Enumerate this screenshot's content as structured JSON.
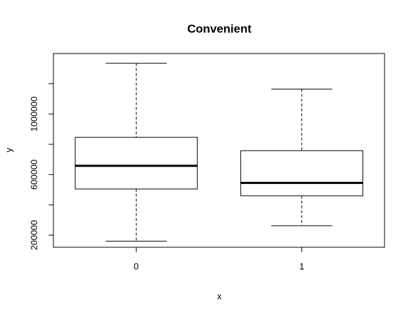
{
  "chart_data": {
    "type": "boxplot",
    "title": "Convenient",
    "xlabel": "x",
    "ylabel": "y",
    "categories": [
      "0",
      "1"
    ],
    "boxes": [
      {
        "category": "0",
        "min": 160000,
        "q1": 505000,
        "median": 658000,
        "q3": 846000,
        "max": 1335000
      },
      {
        "category": "1",
        "min": 262000,
        "q1": 460000,
        "median": 545000,
        "q3": 758000,
        "max": 1165000
      }
    ],
    "ylim": [
      120000,
      1400000
    ],
    "y_ticks": [
      200000,
      400000,
      600000,
      800000,
      1000000,
      1200000
    ],
    "y_tick_labels": [
      "200000",
      "",
      "600000",
      "",
      "1000000",
      ""
    ],
    "grid": false
  }
}
